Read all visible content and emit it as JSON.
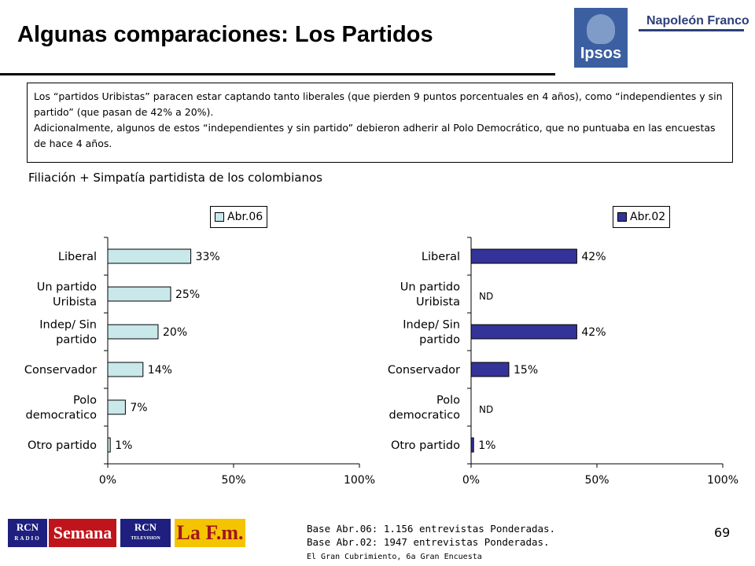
{
  "header": {
    "title": "Algunas comparaciones: Los Partidos",
    "logo_ipsos": "Ipsos",
    "logo_napoleon": "Napoleón Franco"
  },
  "note": {
    "paragraph1": "Los “partidos Uribistas” paracen estar captando tanto liberales (que pierden 9 puntos porcentuales en 4 años), como “independientes y sin partido” (que pasan de 42% a 20%).",
    "paragraph2": "Adicionalmente, algunos de estos “independientes y sin partido” debieron adherir al Polo Democrático, que no puntuaba en las encuestas de hace 4 años."
  },
  "subtitle": "Filiación + Simpatía partidista de los colombianos",
  "chart_data": [
    {
      "type": "bar",
      "orientation": "horizontal",
      "categories": [
        "Liberal",
        "Un partido Uribista",
        "Indep/ Sin partido",
        "Conservador",
        "Polo democratico",
        "Otro partido"
      ],
      "category_lines": [
        [
          "Liberal"
        ],
        [
          "Un partido",
          "Uribista"
        ],
        [
          "Indep/ Sin",
          "partido"
        ],
        [
          "Conservador"
        ],
        [
          "Polo",
          "democratico"
        ],
        [
          "Otro partido"
        ]
      ],
      "series": [
        {
          "name": "Abr.06",
          "values": [
            33,
            25,
            20,
            14,
            7,
            1
          ],
          "labels": [
            "33%",
            "25%",
            "20%",
            "14%",
            "7%",
            "1%"
          ],
          "color": "#c8e8ea"
        }
      ],
      "xlim": [
        0,
        100
      ],
      "xticks": [
        "0%",
        "50%",
        "100%"
      ],
      "legend": "top"
    },
    {
      "type": "bar",
      "orientation": "horizontal",
      "categories": [
        "Liberal",
        "Un partido Uribista",
        "Indep/ Sin partido",
        "Conservador",
        "Polo democratico",
        "Otro partido"
      ],
      "category_lines": [
        [
          "Liberal"
        ],
        [
          "Un partido",
          "Uribista"
        ],
        [
          "Indep/ Sin",
          "partido"
        ],
        [
          "Conservador"
        ],
        [
          "Polo",
          "democratico"
        ],
        [
          "Otro partido"
        ]
      ],
      "series": [
        {
          "name": "Abr.02",
          "values": [
            42,
            null,
            42,
            15,
            null,
            1
          ],
          "labels": [
            "42%",
            "ND",
            "42%",
            "15%",
            "ND",
            "1%"
          ],
          "color": "#333399"
        }
      ],
      "xlim": [
        0,
        100
      ],
      "xticks": [
        "0%",
        "50%",
        "100%"
      ],
      "legend": "top"
    }
  ],
  "base": {
    "line1": "Base Abr.06: 1.156 entrevistas Ponderadas.",
    "line2": "Base Abr.02: 1947 entrevistas Ponderadas."
  },
  "footer": "El Gran Cubrimiento, 6a Gran Encuesta",
  "page_number": "69",
  "partners": {
    "rcn_radio_top": "RCN",
    "rcn_radio_bottom": "RADIO",
    "semana": "Semana",
    "rcn_tv_top": "RCN",
    "rcn_tv_bottom": "TELEVISION",
    "lafm": "La F.m."
  }
}
